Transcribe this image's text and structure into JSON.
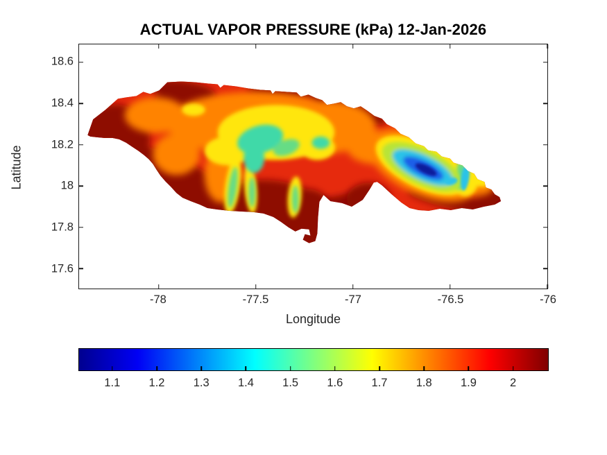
{
  "figure": {
    "title": "ACTUAL VAPOR PRESSURE (kPa) 12-Jan-2026",
    "background": "#FFFFFF"
  },
  "chart_data": {
    "type": "heatmap",
    "subtype": "filled-contour-map",
    "title": "ACTUAL VAPOR PRESSURE (kPa) 12-Jan-2026",
    "xlabel": "Longitude",
    "ylabel": "Latitude",
    "xlim": [
      -78.409,
      -76.0
    ],
    "ylim": [
      17.503,
      18.687
    ],
    "xticks": [
      -78,
      -77.5,
      -77,
      -76.5,
      -76
    ],
    "xtick_labels": [
      "-78",
      "-77.5",
      "-77",
      "-76.5",
      "-76"
    ],
    "yticks": [
      18.6,
      18.4,
      18.2,
      18.0,
      17.8,
      17.6
    ],
    "ytick_labels": [
      "18.6",
      "18.4",
      "18.2",
      "18",
      "17.8",
      "17.6"
    ],
    "grid": false,
    "legend": "none",
    "colormap": "jet",
    "colorbar": {
      "orientation": "horizontal",
      "location": "below plot",
      "range": [
        1.024,
        2.08
      ],
      "ticks": [
        1.1,
        1.2,
        1.3,
        1.4,
        1.5,
        1.6,
        1.7,
        1.8,
        1.9,
        2
      ],
      "tick_labels": [
        "1.1",
        "1.2",
        "1.3",
        "1.4",
        "1.5",
        "1.6",
        "1.7",
        "1.8",
        "1.9",
        "2"
      ]
    },
    "palette": {
      "navy": "#00008F",
      "blue": "#0000F5",
      "mid_blue": "#1C5FE8",
      "deep_blue": "#111C9C",
      "cyan": "#29C3E8",
      "cb_cyan": "#00FFFF",
      "teal": "#3FD9A8",
      "green": "#66DC85",
      "green_yellow": "#B8E438",
      "yellow": "#FFE60A",
      "cb_yellow": "#FFFF00",
      "orange": "#FF8300",
      "orange_red": "#FF4A00",
      "red": "#E62C0C",
      "cb_red": "#FF0000",
      "maroon": "#8E0A02",
      "cb_maroon": "#800000",
      "axis": "#1A1A1A",
      "label": "#262626"
    },
    "sampled_points": [
      {
        "lon": -78.3,
        "lat": 18.3,
        "kPa": 2.05
      },
      {
        "lon": -78.0,
        "lat": 18.25,
        "kPa": 1.9
      },
      {
        "lon": -77.6,
        "lat": 18.3,
        "kPa": 1.75
      },
      {
        "lon": -77.45,
        "lat": 18.25,
        "kPa": 1.6
      },
      {
        "lon": -77.4,
        "lat": 18.18,
        "kPa": 1.5
      },
      {
        "lon": -77.55,
        "lat": 18.05,
        "kPa": 1.65
      },
      {
        "lon": -77.2,
        "lat": 17.95,
        "kPa": 2.05
      },
      {
        "lon": -76.9,
        "lat": 18.15,
        "kPa": 2.0
      },
      {
        "lon": -76.62,
        "lat": 18.06,
        "kPa": 1.05
      },
      {
        "lon": -76.55,
        "lat": 18.1,
        "kPa": 1.35
      },
      {
        "lon": -76.45,
        "lat": 18.05,
        "kPa": 1.55
      },
      {
        "lon": -76.35,
        "lat": 18.0,
        "kPa": 1.9
      }
    ]
  }
}
